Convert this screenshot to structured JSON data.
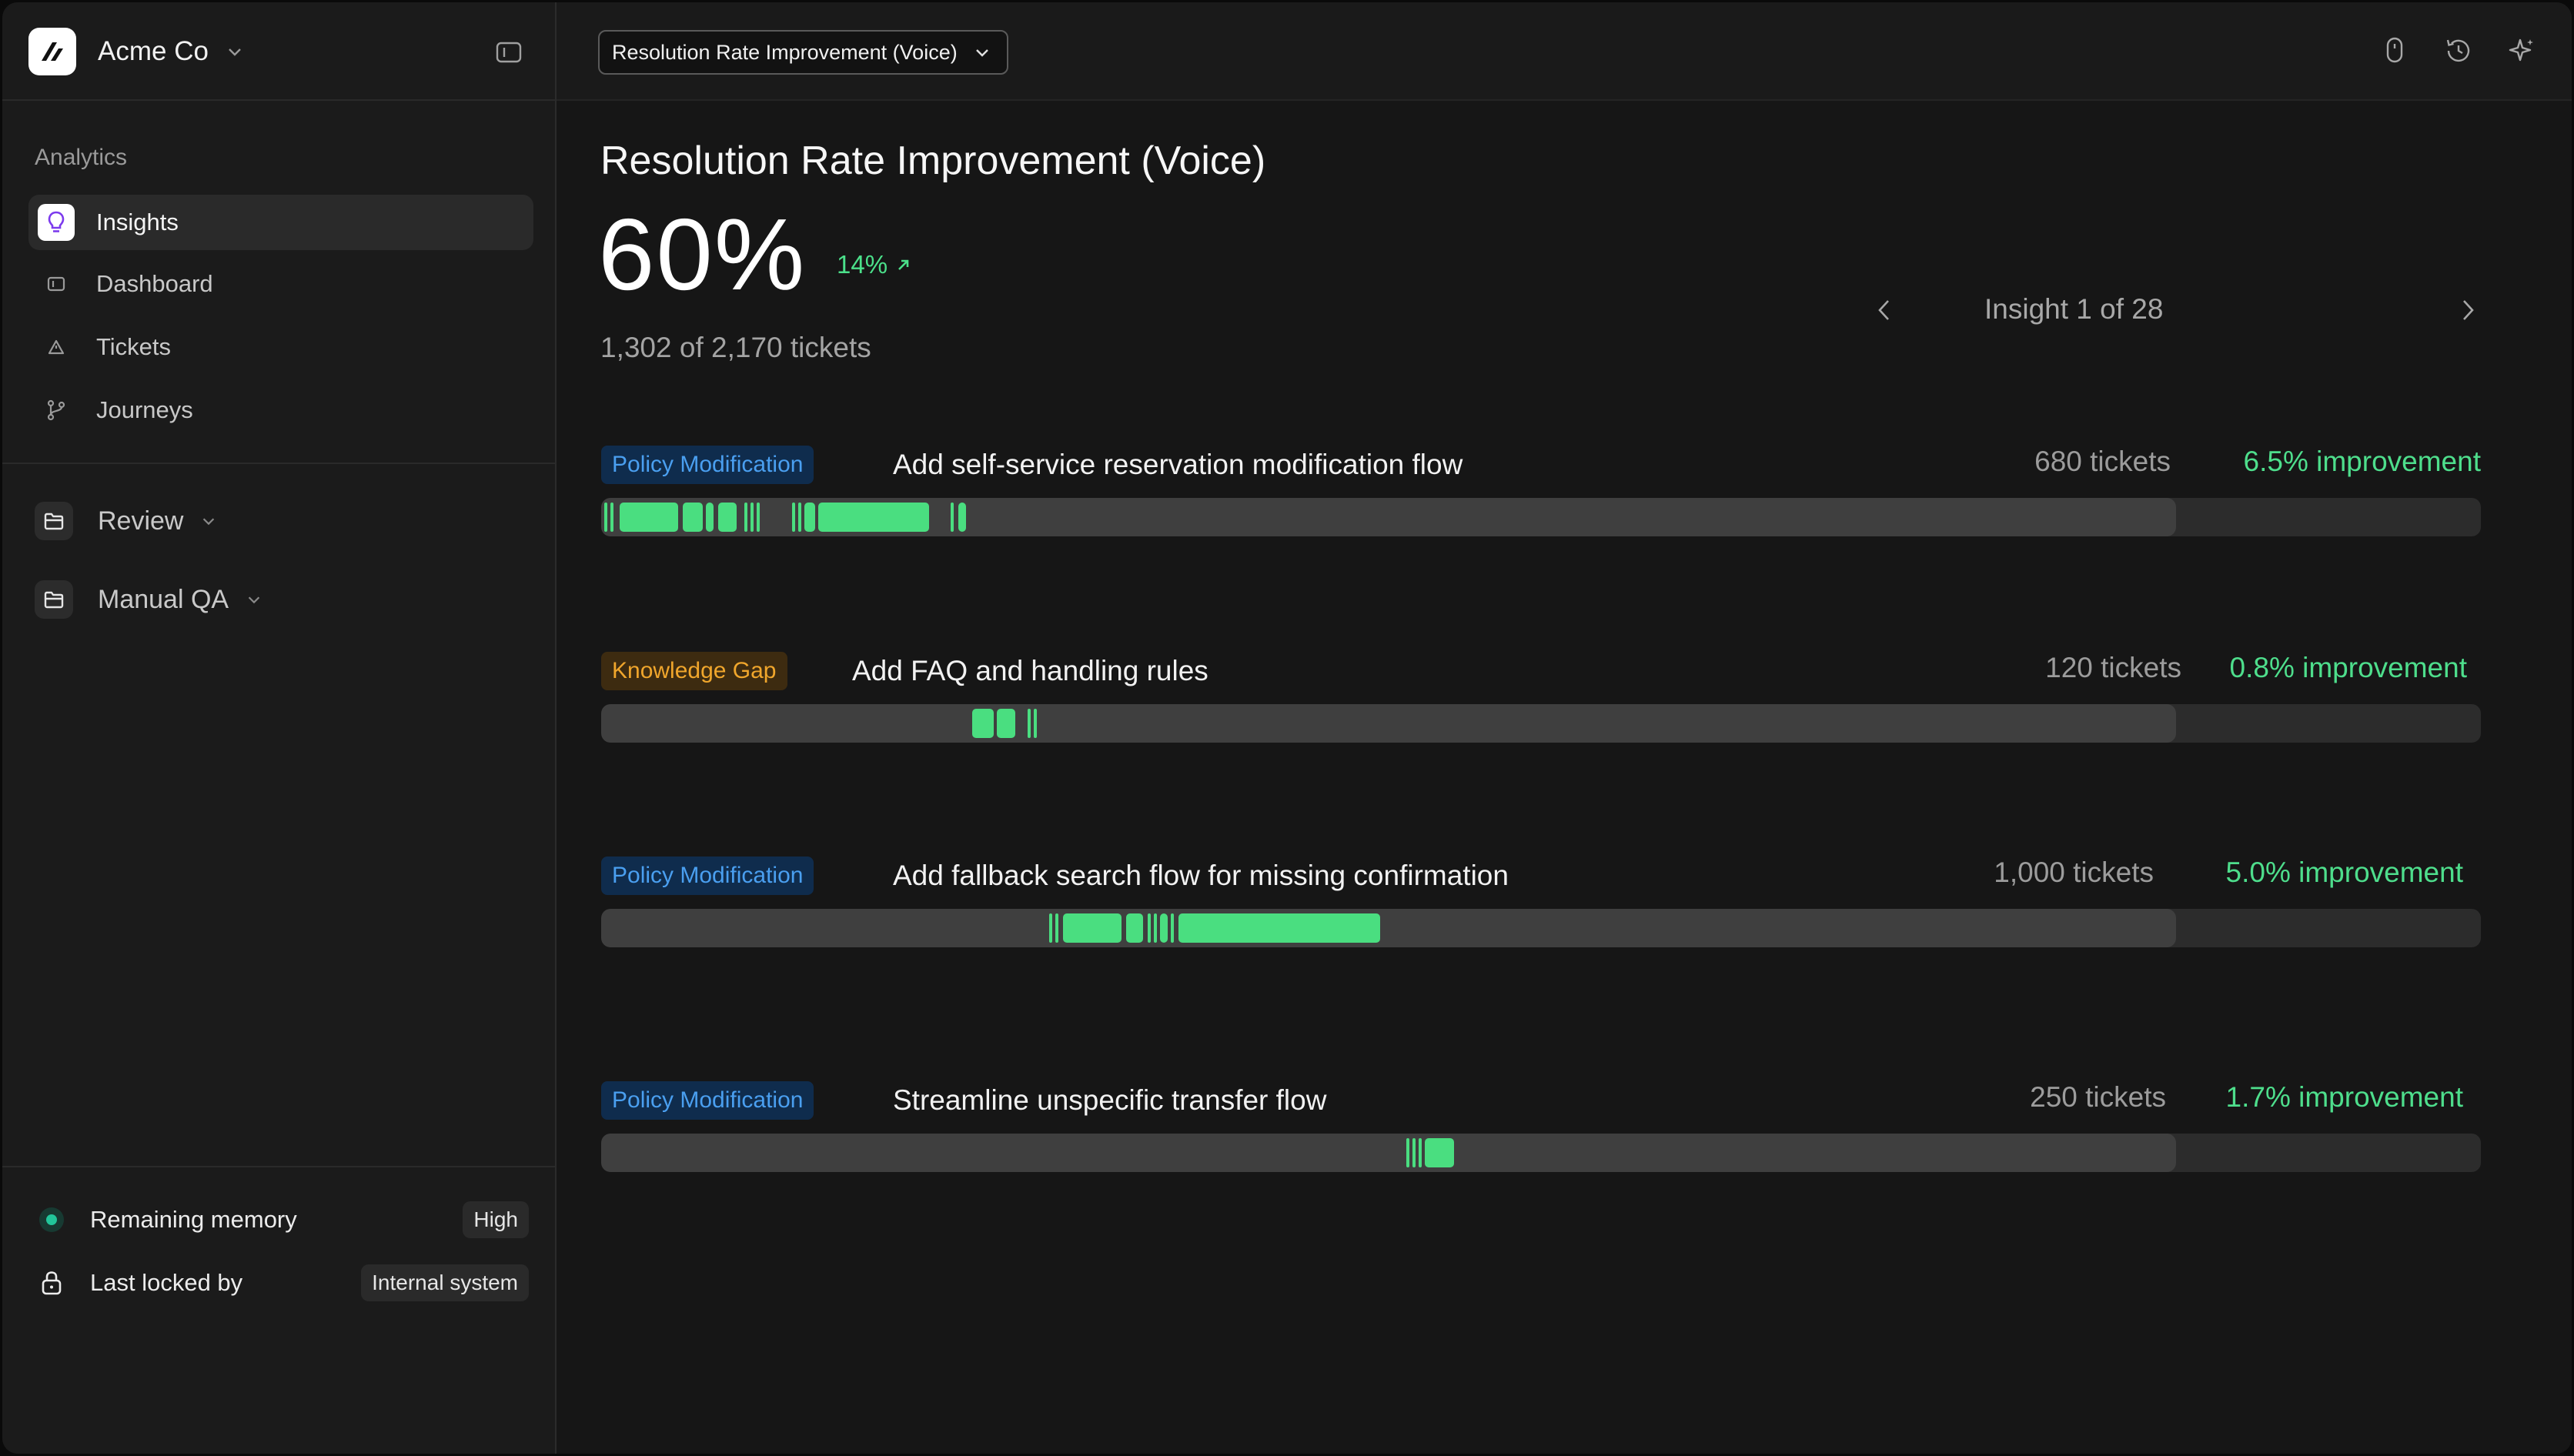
{
  "workspace": {
    "name": "Acme Co"
  },
  "sidebar": {
    "section_label": "Analytics",
    "items": [
      {
        "label": "Insights",
        "icon": "lightbulb-icon",
        "active": true
      },
      {
        "label": "Dashboard",
        "icon": "dashboard-icon"
      },
      {
        "label": "Tickets",
        "icon": "ticket-icon"
      },
      {
        "label": "Journeys",
        "icon": "branch-icon"
      }
    ],
    "groups": [
      {
        "label": "Review",
        "icon": "folder-icon"
      },
      {
        "label": "Manual QA",
        "icon": "folder-icon"
      }
    ],
    "footer": {
      "memory_label": "Remaining memory",
      "memory_value": "High",
      "memory_status_color": "#22c59a",
      "lock_label": "Last locked by",
      "lock_value": "Internal system"
    }
  },
  "topbar": {
    "selector_value": "Resolution Rate Improvement (Voice)",
    "icons": [
      "mouse-icon",
      "history-icon",
      "sparkle-icon"
    ]
  },
  "main": {
    "title": "Resolution Rate Improvement (Voice)",
    "metric": "60%",
    "delta": "14%",
    "delta_direction": "up",
    "sub": "1,302 of 2,170 tickets",
    "pager": "Insight 1 of 28"
  },
  "colors": {
    "accent_green": "#4ade80",
    "policy_badge": "#4a9ff0",
    "gap_badge": "#f0a62c"
  },
  "insights": [
    {
      "tag": "Policy Modification",
      "tag_type": "policy",
      "title": "Add self-service reservation modification flow",
      "tickets": "680 tickets",
      "improvement": "6.5% improvement"
    },
    {
      "tag": "Knowledge Gap",
      "tag_type": "gap",
      "title": "Add FAQ and handling rules",
      "tickets": "120 tickets",
      "improvement": "0.8% improvement"
    },
    {
      "tag": "Policy Modification",
      "tag_type": "policy",
      "title": "Add fallback search flow for missing confirmation",
      "tickets": "1,000 tickets",
      "improvement": "5.0% improvement"
    },
    {
      "tag": "Policy Modification",
      "tag_type": "policy",
      "title": "Streamline unspecific transfer flow",
      "tickets": "250 tickets",
      "improvement": "1.7% improvement"
    }
  ]
}
